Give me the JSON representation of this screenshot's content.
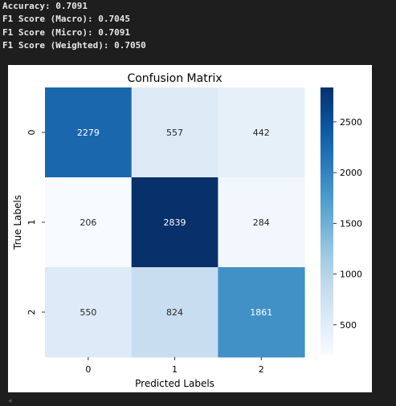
{
  "console": {
    "lines": [
      "Accuracy: 0.7091",
      "F1 Score (Macro): 0.7045",
      "F1 Score (Micro): 0.7091",
      "F1 Score (Weighted): 0.7050"
    ]
  },
  "chart_data": {
    "type": "heatmap",
    "title": "Confusion Matrix",
    "xlabel": "Predicted Labels",
    "ylabel": "True Labels",
    "x_categories": [
      "0",
      "1",
      "2"
    ],
    "y_categories": [
      "0",
      "1",
      "2"
    ],
    "values": [
      [
        2279,
        557,
        442
      ],
      [
        206,
        2839,
        284
      ],
      [
        550,
        824,
        1861
      ]
    ],
    "colormap": "Blues",
    "colorbar": {
      "ticks": [
        500,
        1000,
        1500,
        2000,
        2500
      ],
      "tick_labels": [
        "500",
        "1000",
        "1500",
        "2000",
        "2500"
      ],
      "range": [
        206,
        2839
      ]
    },
    "annotation_colors": {
      "dark_cell": "#ffffff",
      "light_cell": "#262626"
    }
  },
  "icons": {
    "scroll_left": "triangle-left-icon"
  },
  "glyphs": {
    "scroll_left": "◂"
  }
}
